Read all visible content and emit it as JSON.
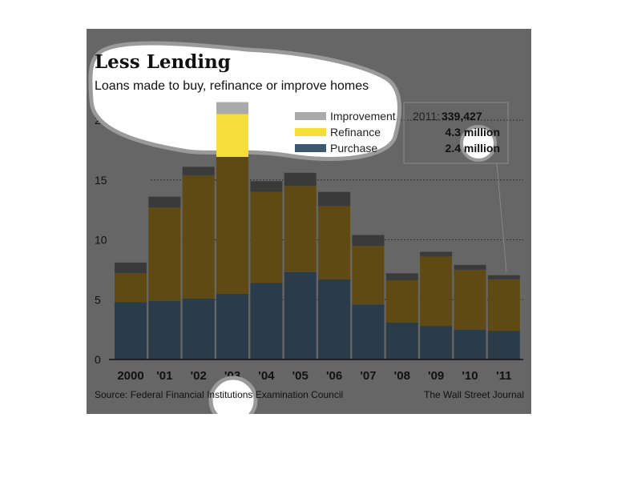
{
  "chart_data": {
    "type": "bar",
    "stacked": true,
    "title": "Less Lending",
    "subtitle": "Loans made to buy, refinance or improve homes",
    "categories": [
      "2000",
      "'01",
      "'02",
      "'03",
      "'04",
      "'05",
      "'06",
      "'07",
      "'08",
      "'09",
      "'10",
      "'11"
    ],
    "series": [
      {
        "name": "Purchase",
        "color": "#2a3b4a",
        "values": [
          4.8,
          4.9,
          5.1,
          5.5,
          6.4,
          7.3,
          6.7,
          4.6,
          3.1,
          2.8,
          2.5,
          2.4
        ]
      },
      {
        "name": "Refinance",
        "color": "#5e4a12",
        "values": [
          2.4,
          7.8,
          10.3,
          15.0,
          7.6,
          7.2,
          6.1,
          4.9,
          3.5,
          5.8,
          5.0,
          4.3
        ]
      },
      {
        "name": "Improvement",
        "color": "#3a3a3a",
        "values": [
          0.9,
          0.9,
          0.7,
          1.0,
          0.9,
          1.1,
          1.2,
          0.9,
          0.6,
          0.4,
          0.4,
          0.34
        ]
      }
    ],
    "ylim": [
      0,
      20
    ],
    "yticks": [
      0,
      5,
      10,
      15,
      20
    ],
    "ytick_labels": [
      "0",
      "5",
      "10",
      "15",
      "20 million"
    ],
    "grid": true,
    "legend_position": "top-right",
    "annotation": {
      "year_label": "2011:",
      "improvement": "339,427",
      "refinance": "4.3 million",
      "purchase": "2.4 million"
    },
    "source": "Source: Federal Financial Institutions Examination Council",
    "credit": "The Wall Street Journal",
    "highlight_colors": {
      "improvement": "#aaaaaa",
      "refinance": "#f5dd3a",
      "purchase": "#3b5870"
    }
  }
}
